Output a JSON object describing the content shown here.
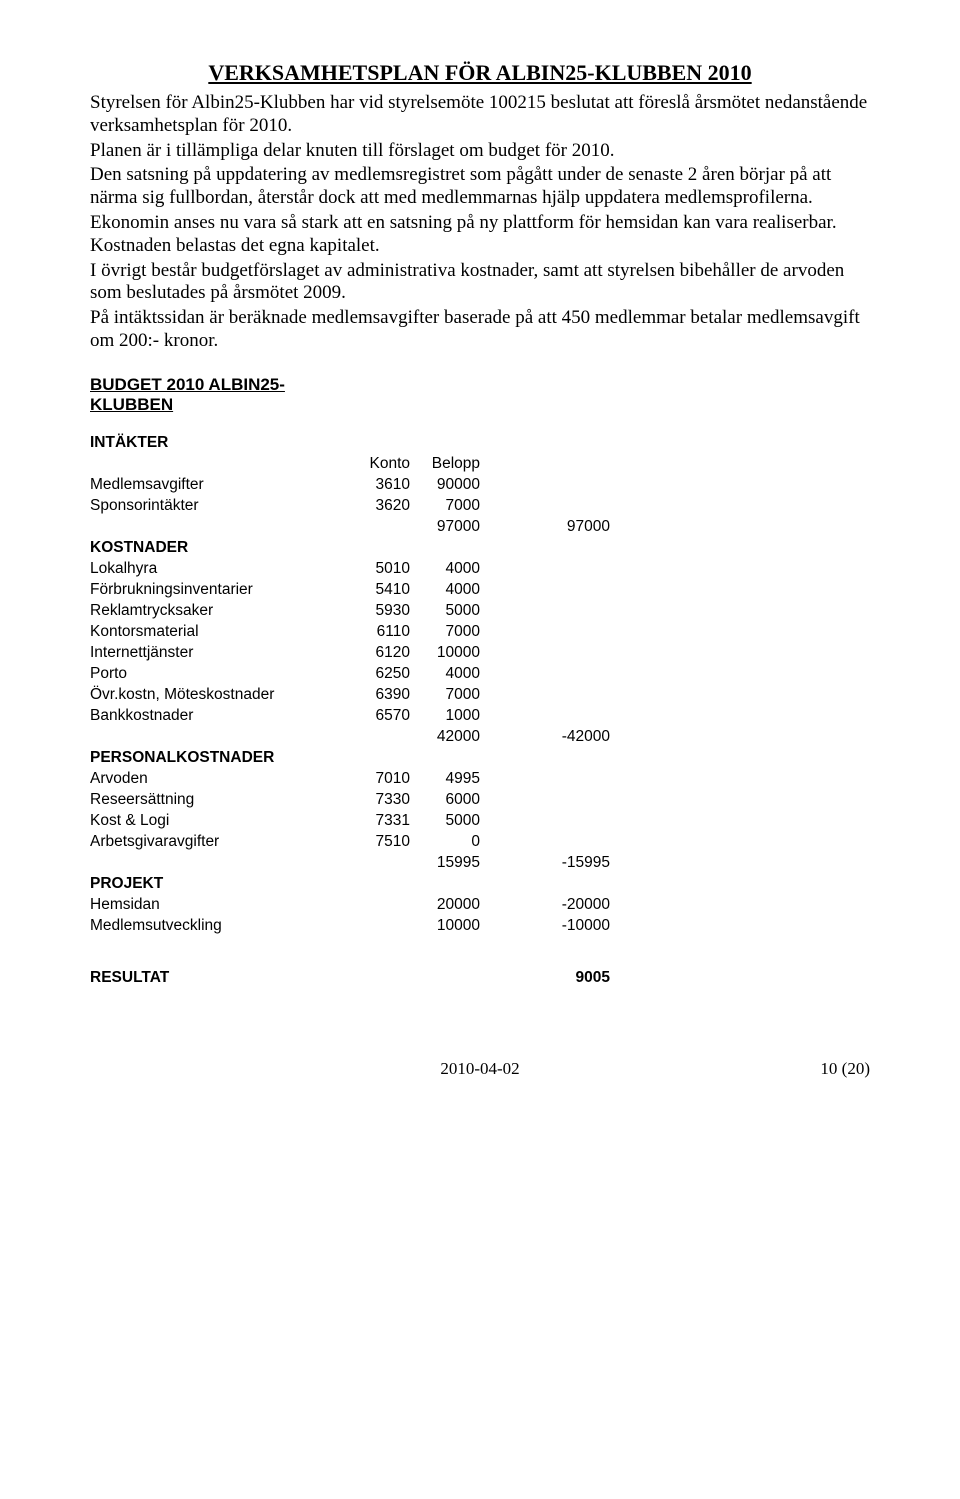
{
  "title": "VERKSAMHETSPLAN FÖR ALBIN25-KLUBBEN 2010",
  "paragraphs": {
    "p1": "Styrelsen för Albin25-Klubben har vid styrelsemöte 100215 beslutat att föreslå årsmötet nedanstående verksamhetsplan för 2010.",
    "p2": "Planen är i tillämpliga delar knuten till förslaget om budget för 2010.",
    "p3": "Den satsning på uppdatering av medlemsregistret som pågått under de senaste 2 åren börjar på att närma sig fullbordan, återstår dock att med medlemmarnas hjälp uppdatera medlemsprofilerna.",
    "p4": "Ekonomin anses nu vara så stark att en satsning på ny plattform för hemsidan kan vara realiserbar. Kostnaden belastas det egna kapitalet.",
    "p5": "I övrigt består budgetförslaget av administrativa kostnader, samt att styrelsen bibehåller de arvoden som beslutades på årsmötet 2009.",
    "p6": "På intäktssidan är beräknade medlemsavgifter baserade på att 450 medlemmar betalar medlemsavgift om 200:- kronor."
  },
  "budget": {
    "heading_line1": "BUDGET 2010 ALBIN25-",
    "heading_line2": "KLUBBEN",
    "headers": {
      "konto": "Konto",
      "belopp": "Belopp"
    },
    "sections": {
      "intakter": {
        "title": "INTÄKTER",
        "rows": [
          {
            "label": "Medlemsavgifter",
            "konto": "3610",
            "belopp": "90000"
          },
          {
            "label": "Sponsorintäkter",
            "konto": "3620",
            "belopp": "7000"
          }
        ],
        "subtotal": {
          "belopp": "97000",
          "net": "97000"
        }
      },
      "kostnader": {
        "title": "KOSTNADER",
        "rows": [
          {
            "label": "Lokalhyra",
            "konto": "5010",
            "belopp": "4000"
          },
          {
            "label": "Förbrukningsinventarier",
            "konto": "5410",
            "belopp": "4000"
          },
          {
            "label": "Reklamtrycksaker",
            "konto": "5930",
            "belopp": "5000"
          },
          {
            "label": "Kontorsmaterial",
            "konto": "6110",
            "belopp": "7000"
          },
          {
            "label": "Internettjänster",
            "konto": "6120",
            "belopp": "10000"
          },
          {
            "label": "Porto",
            "konto": "6250",
            "belopp": "4000"
          },
          {
            "label": "Övr.kostn, Möteskostnader",
            "konto": "6390",
            "belopp": "7000"
          },
          {
            "label": "Bankkostnader",
            "konto": "6570",
            "belopp": "1000"
          }
        ],
        "subtotal": {
          "belopp": "42000",
          "net": "-42000"
        }
      },
      "personal": {
        "title": "PERSONALKOSTNADER",
        "rows": [
          {
            "label": "Arvoden",
            "konto": "7010",
            "belopp": "4995"
          },
          {
            "label": "Reseersättning",
            "konto": "7330",
            "belopp": "6000"
          },
          {
            "label": "Kost & Logi",
            "konto": "7331",
            "belopp": "5000"
          },
          {
            "label": "Arbetsgivaravgifter",
            "konto": "7510",
            "belopp": "0"
          }
        ],
        "subtotal": {
          "belopp": "15995",
          "net": "-15995"
        }
      },
      "projekt": {
        "title": "PROJEKT",
        "rows": [
          {
            "label": "Hemsidan",
            "belopp": "20000",
            "net": "-20000"
          },
          {
            "label": "Medlemsutveckling",
            "belopp": "10000",
            "net": "-10000"
          }
        ]
      }
    },
    "result": {
      "label": "RESULTAT",
      "value": "9005"
    }
  },
  "footer": {
    "date": "2010-04-02",
    "page": "10 (20)"
  }
}
